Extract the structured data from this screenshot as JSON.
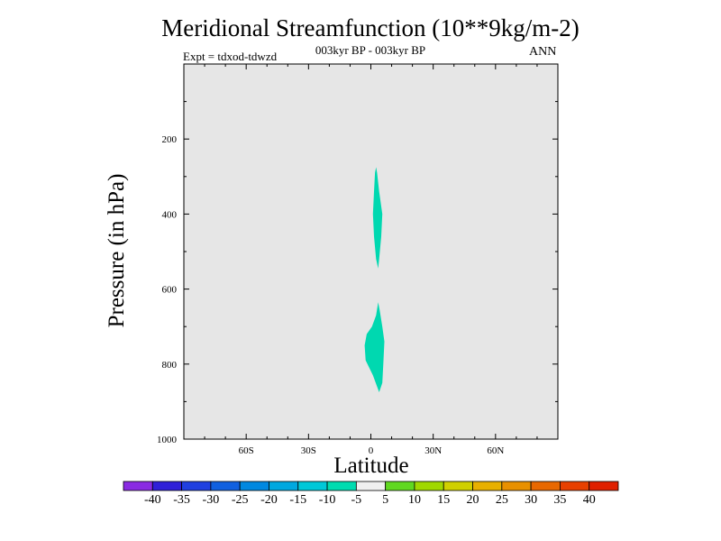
{
  "header": {
    "title": "Meridional Streamfunction (10**9kg/m-2)",
    "subtitle": "003kyr BP - 003kyr BP",
    "left_string": "Expt = tdxod-tdwzd",
    "right_string": "ANN"
  },
  "chart_data": {
    "type": "contour",
    "xlabel": "Latitude",
    "ylabel": "Pressure (in hPa)",
    "xlim": [
      -90,
      90
    ],
    "ylim": [
      1000,
      0
    ],
    "x_ticks": [
      {
        "value": -60,
        "label": "60S"
      },
      {
        "value": -30,
        "label": "30S"
      },
      {
        "value": 0,
        "label": "0"
      },
      {
        "value": 30,
        "label": "30N"
      },
      {
        "value": 60,
        "label": "60N"
      }
    ],
    "y_ticks": [
      {
        "value": 200,
        "label": "200"
      },
      {
        "value": 400,
        "label": "400"
      },
      {
        "value": 600,
        "label": "600"
      },
      {
        "value": 800,
        "label": "800"
      },
      {
        "value": 1000,
        "label": "1000"
      }
    ],
    "background_color": "#e6e6e6",
    "contour_regions": [
      {
        "level_range": [
          -10,
          -5
        ],
        "color": "#00d8b0",
        "outline": [
          [
            2.5,
            275
          ],
          [
            3,
            290
          ],
          [
            4,
            340
          ],
          [
            5.5,
            400
          ],
          [
            5,
            460
          ],
          [
            4,
            520
          ],
          [
            3.5,
            545
          ],
          [
            2.5,
            520
          ],
          [
            1.5,
            460
          ],
          [
            1,
            400
          ],
          [
            1.5,
            340
          ],
          [
            2,
            290
          ]
        ]
      },
      {
        "level_range": [
          -10,
          -5
        ],
        "color": "#00d8b0",
        "outline": [
          [
            3.5,
            635
          ],
          [
            4.2,
            655
          ],
          [
            5.5,
            700
          ],
          [
            6.5,
            740
          ],
          [
            6,
            800
          ],
          [
            5.5,
            850
          ],
          [
            4,
            875
          ],
          [
            3,
            860
          ],
          [
            1,
            830
          ],
          [
            -2.5,
            790
          ],
          [
            -3,
            750
          ],
          [
            -2,
            720
          ],
          [
            0.5,
            700
          ],
          [
            2.5,
            670
          ]
        ]
      }
    ],
    "colorbar": {
      "labels": [
        "-40",
        "-35",
        "-30",
        "-25",
        "-20",
        "-15",
        "-10",
        "-5",
        "5",
        "10",
        "15",
        "20",
        "25",
        "30",
        "35",
        "40"
      ],
      "colors": [
        "#8a2be2",
        "#3020d8",
        "#2040e0",
        "#1060e0",
        "#0088e0",
        "#00a8e0",
        "#00c8d8",
        "#00dcb0",
        "#f0f0f0",
        "#60d820",
        "#a0d800",
        "#d0d000",
        "#e8b000",
        "#e89000",
        "#e86800",
        "#e84000",
        "#e02000"
      ]
    }
  }
}
